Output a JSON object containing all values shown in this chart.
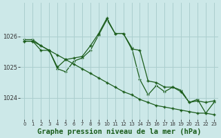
{
  "bg_color": "#cce8e8",
  "grid_color": "#aacece",
  "line_color": "#1a5c1a",
  "title": "Graphe pression niveau de la mer (hPa)",
  "xlabel_fontsize": 7.5,
  "xlim": [
    -0.5,
    23.5
  ],
  "ylim": [
    1023.3,
    1027.1
  ],
  "yticks": [
    1024,
    1025,
    1026
  ],
  "xticks": [
    0,
    1,
    2,
    3,
    4,
    5,
    6,
    7,
    8,
    9,
    10,
    11,
    12,
    13,
    14,
    15,
    16,
    17,
    18,
    19,
    20,
    21,
    22,
    23
  ],
  "series1": {
    "x": [
      0,
      1,
      2,
      3,
      4,
      5,
      6,
      7,
      8,
      9,
      10,
      11,
      12,
      13,
      14,
      15,
      16,
      17,
      18,
      19,
      20,
      21,
      22,
      23
    ],
    "y": [
      1025.85,
      1025.85,
      1025.7,
      1025.55,
      1025.4,
      1025.25,
      1025.1,
      1024.95,
      1024.8,
      1024.65,
      1024.5,
      1024.35,
      1024.2,
      1024.1,
      1023.95,
      1023.85,
      1023.75,
      1023.7,
      1023.65,
      1023.6,
      1023.55,
      1023.5,
      1023.5,
      1023.45
    ]
  },
  "series2": {
    "x": [
      0,
      1,
      2,
      3,
      4,
      5,
      6,
      7,
      8,
      9,
      10,
      11,
      12,
      13,
      14,
      15,
      16,
      17,
      18,
      19,
      20,
      21,
      22,
      23
    ],
    "y": [
      1025.85,
      1025.85,
      1025.55,
      1025.55,
      1025.0,
      1025.25,
      1025.3,
      1025.35,
      1025.7,
      1026.1,
      1026.6,
      1026.1,
      1026.1,
      1025.6,
      1025.55,
      1024.55,
      1024.5,
      1024.35,
      1024.35,
      1024.2,
      1023.85,
      1023.9,
      1023.85,
      1023.9
    ]
  },
  "series3": {
    "x": [
      0,
      1,
      2,
      3,
      4,
      5,
      6,
      7,
      8,
      9,
      10,
      11,
      12,
      13,
      14,
      15,
      16,
      17,
      18,
      19,
      20,
      21,
      22,
      23
    ],
    "y": [
      1025.9,
      1025.9,
      1025.7,
      1025.55,
      1024.95,
      1024.85,
      1025.2,
      1025.3,
      1025.55,
      1026.05,
      1026.55,
      1026.1,
      1026.1,
      1025.65,
      1024.6,
      1024.1,
      1024.4,
      1024.2,
      1024.35,
      1024.25,
      1023.85,
      1023.95,
      1023.5,
      1023.85
    ]
  }
}
